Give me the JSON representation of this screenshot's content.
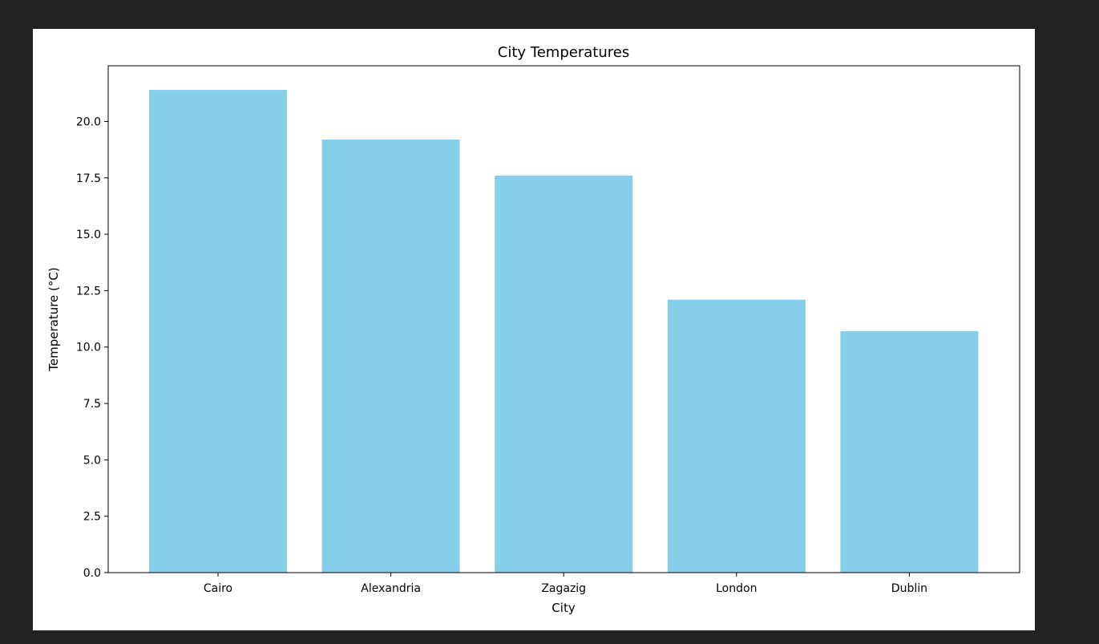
{
  "chart_data": {
    "type": "bar",
    "title": "City Temperatures",
    "xlabel": "City",
    "ylabel": "Temperature (°C)",
    "categories": [
      "Cairo",
      "Alexandria",
      "Zagazig",
      "London",
      "Dublin"
    ],
    "values": [
      21.4,
      19.2,
      17.6,
      12.1,
      10.7
    ],
    "ylim": [
      0,
      22.47
    ],
    "yticks": [
      0.0,
      2.5,
      5.0,
      7.5,
      10.0,
      12.5,
      15.0,
      17.5,
      20.0
    ],
    "ytick_labels": [
      "0.0",
      "2.5",
      "5.0",
      "7.5",
      "10.0",
      "12.5",
      "15.0",
      "17.5",
      "20.0"
    ],
    "grid": false,
    "bar_color": "#87ceeb",
    "background": "#ffffff",
    "page_background": "#222222"
  }
}
